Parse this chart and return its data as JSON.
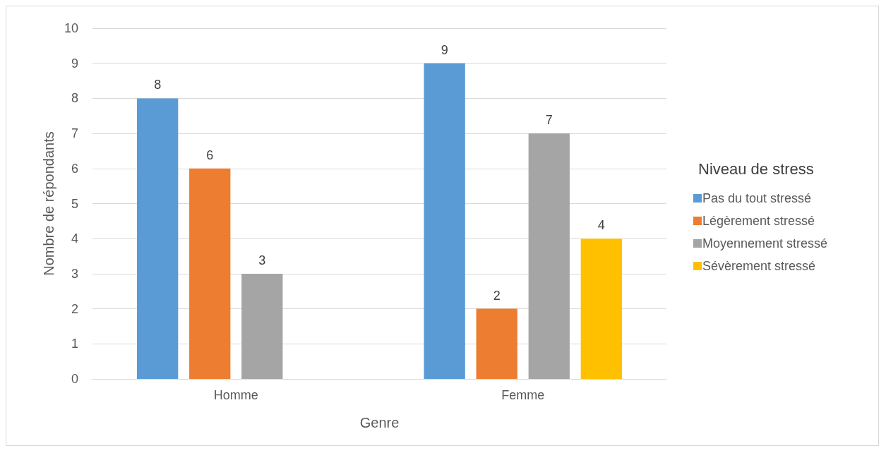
{
  "chart_data": {
    "type": "bar",
    "xlabel": "Genre",
    "ylabel": "Nombre de répondants",
    "legend_title": "Niveau de stress",
    "categories": [
      "Homme",
      "Femme"
    ],
    "series": [
      {
        "name": "Pas du tout stressé",
        "color": "#5b9bd5",
        "values": [
          8,
          9
        ]
      },
      {
        "name": "Légèrement stressé",
        "color": "#ed7d31",
        "values": [
          6,
          2
        ]
      },
      {
        "name": "Moyennement stressé",
        "color": "#a5a5a5",
        "values": [
          3,
          7
        ]
      },
      {
        "name": "Sévèrement stressé",
        "color": "#ffc000",
        "values": [
          null,
          4
        ]
      }
    ],
    "ylim": [
      0,
      10
    ],
    "yticks": [
      0,
      1,
      2,
      3,
      4,
      5,
      6,
      7,
      8,
      9,
      10
    ],
    "grid": "y",
    "legend": "right",
    "data_labels": true
  }
}
